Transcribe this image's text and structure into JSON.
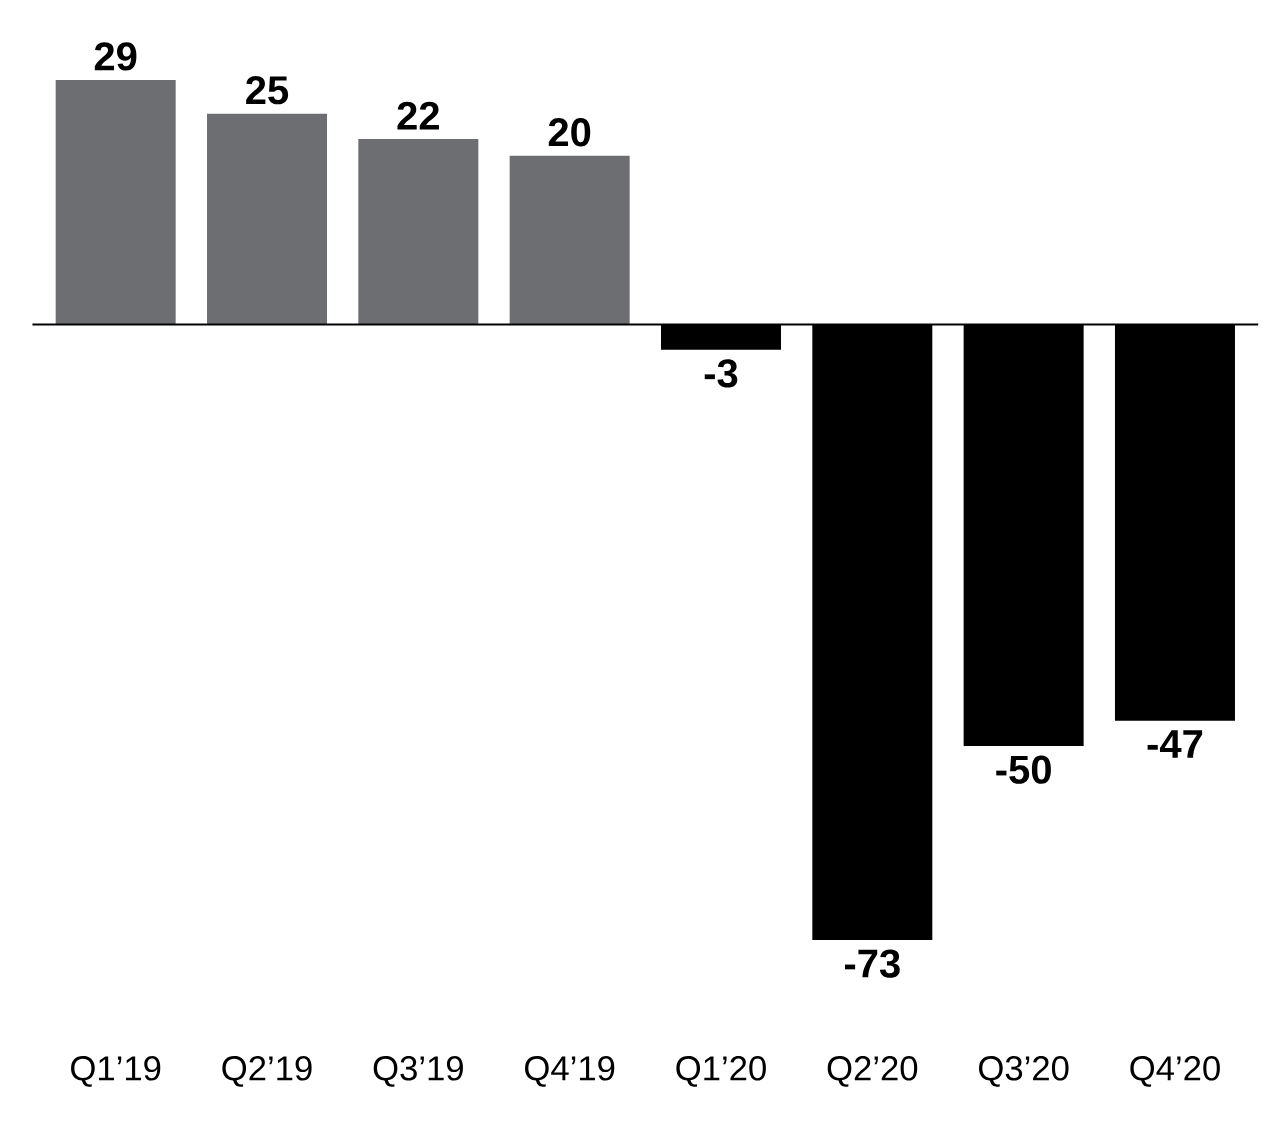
{
  "chart_data": {
    "type": "bar",
    "categories": [
      "Q1’19",
      "Q2’19",
      "Q3’19",
      "Q4’19",
      "Q1’20",
      "Q2’20",
      "Q3’20",
      "Q4’20"
    ],
    "values": [
      29,
      25,
      22,
      20,
      -3,
      -73,
      -50,
      -47
    ],
    "colors": [
      "#6d6e71",
      "#6d6e71",
      "#6d6e71",
      "#6d6e71",
      "#000000",
      "#000000",
      "#000000",
      "#000000"
    ],
    "data_labels": true
  }
}
